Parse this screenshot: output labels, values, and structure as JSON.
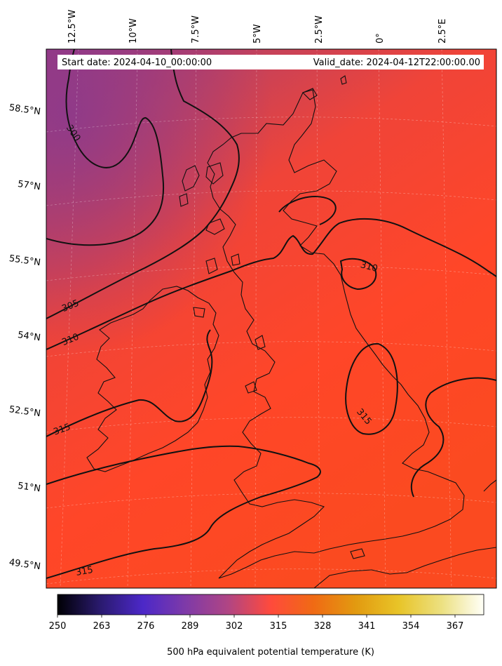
{
  "header": {
    "start_date": "Start date: 2024-04-10_00:00:00",
    "valid_date": "Valid_date: 2024-04-12T22:00:00.00"
  },
  "longitude_labels": [
    "12.5°W",
    "10°W",
    "7.5°W",
    "5°W",
    "2.5°W",
    "0°",
    "2.5°E"
  ],
  "latitude_labels": [
    "58.5°N",
    "57°N",
    "55.5°N",
    "54°N",
    "52.5°N",
    "51°N",
    "49.5°N"
  ],
  "contour_labels": [
    "300",
    "305",
    "310",
    "310",
    "315",
    "315",
    "315"
  ],
  "colorbar": {
    "label": "500 hPa equivalent potential temperature (K)",
    "ticks": [
      "250",
      "263",
      "276",
      "289",
      "302",
      "315",
      "328",
      "341",
      "354",
      "367"
    ],
    "colormap": [
      "#000004",
      "#2a1a6e",
      "#4c28c8",
      "#7e3aa8",
      "#b04584",
      "#e8485a",
      "#ff4830",
      "#f07b10",
      "#e6b020",
      "#ece070",
      "#fffff8"
    ]
  },
  "colors": {
    "background_main": "#ff4426",
    "background_north": "#d44048",
    "background_northwest": "#a23a7c",
    "contour": "#111111"
  }
}
